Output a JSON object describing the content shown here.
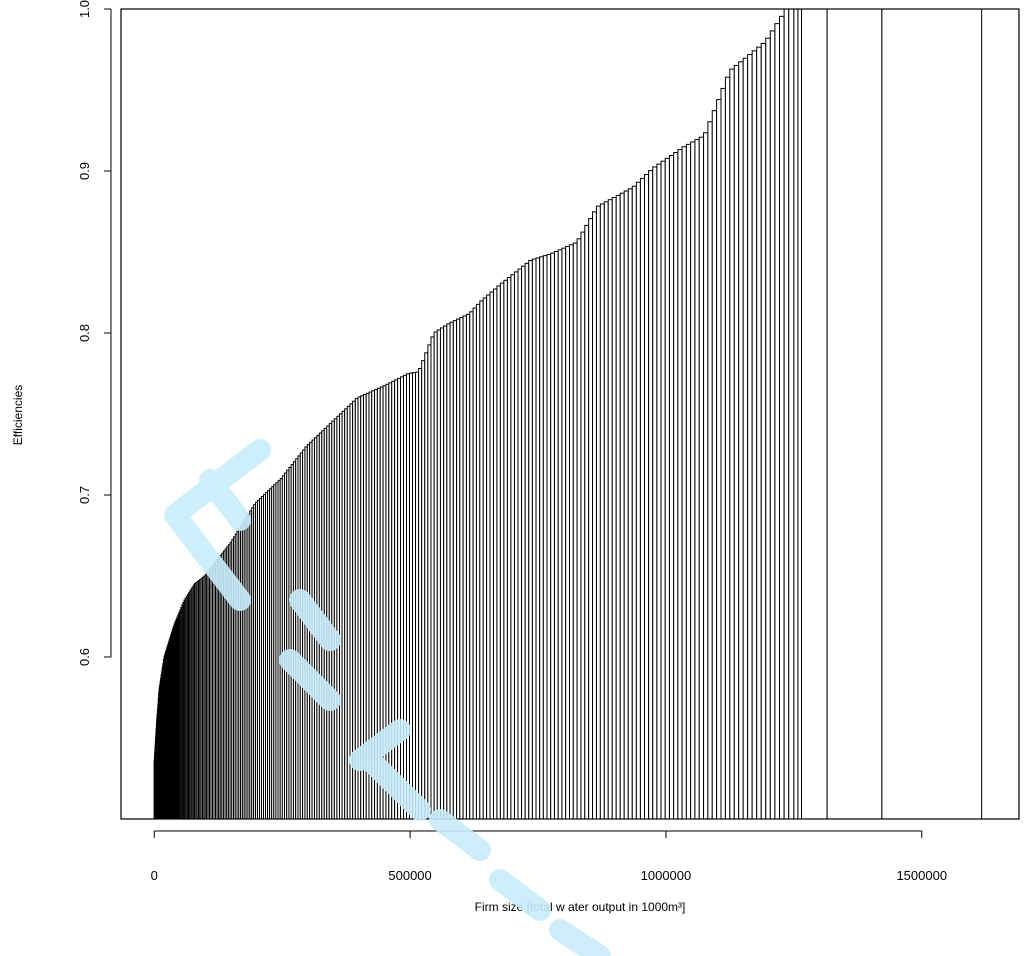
{
  "chart_data": {
    "type": "bar",
    "description": "DEA efficiency vs. firm size: each firm drawn as a vertical bar whose width equals its output; firms sorted ascending by efficiency",
    "xlabel": "Firm size [total w ater output in 1000m³]",
    "ylabel": "Efficiencies",
    "xlim": [
      -65000,
      1690000
    ],
    "ylim": [
      0.5,
      1.0
    ],
    "x_ticks": [
      0,
      500000,
      1000000,
      1500000
    ],
    "x_tick_labels": [
      "0",
      "500000",
      "1000000",
      "1500000"
    ],
    "y_ticks": [
      0.6,
      0.7,
      0.8,
      0.9,
      1.0
    ],
    "y_tick_labels": [
      "0.6",
      "0.7",
      "0.8",
      "0.9",
      "1.0"
    ],
    "grid": false,
    "legend": "none",
    "frontier_breakpoints": {
      "x": [
        0,
        5000,
        10000,
        20000,
        40000,
        60000,
        80000,
        100000,
        150000,
        200000,
        250000,
        300000,
        350000,
        400000,
        450000,
        500000,
        520000,
        550000,
        580000,
        620000,
        640000,
        680000,
        740000,
        780000,
        830000,
        870000,
        940000,
        980000,
        1040000,
        1080000,
        1130000,
        1200000,
        1240000,
        1617000
      ],
      "y": [
        0.535,
        0.56,
        0.58,
        0.6,
        0.62,
        0.635,
        0.645,
        0.65,
        0.67,
        0.695,
        0.71,
        0.73,
        0.745,
        0.76,
        0.767,
        0.775,
        0.776,
        0.8,
        0.806,
        0.812,
        0.819,
        0.83,
        0.845,
        0.849,
        0.856,
        0.878,
        0.89,
        0.902,
        0.915,
        0.922,
        0.962,
        0.98,
        1.0,
        1.0
      ]
    },
    "bar_count": 260,
    "large_firm_boundaries": [
      1240000,
      1250000,
      1258000,
      1265000,
      1315000,
      1422000,
      1617000
    ]
  }
}
